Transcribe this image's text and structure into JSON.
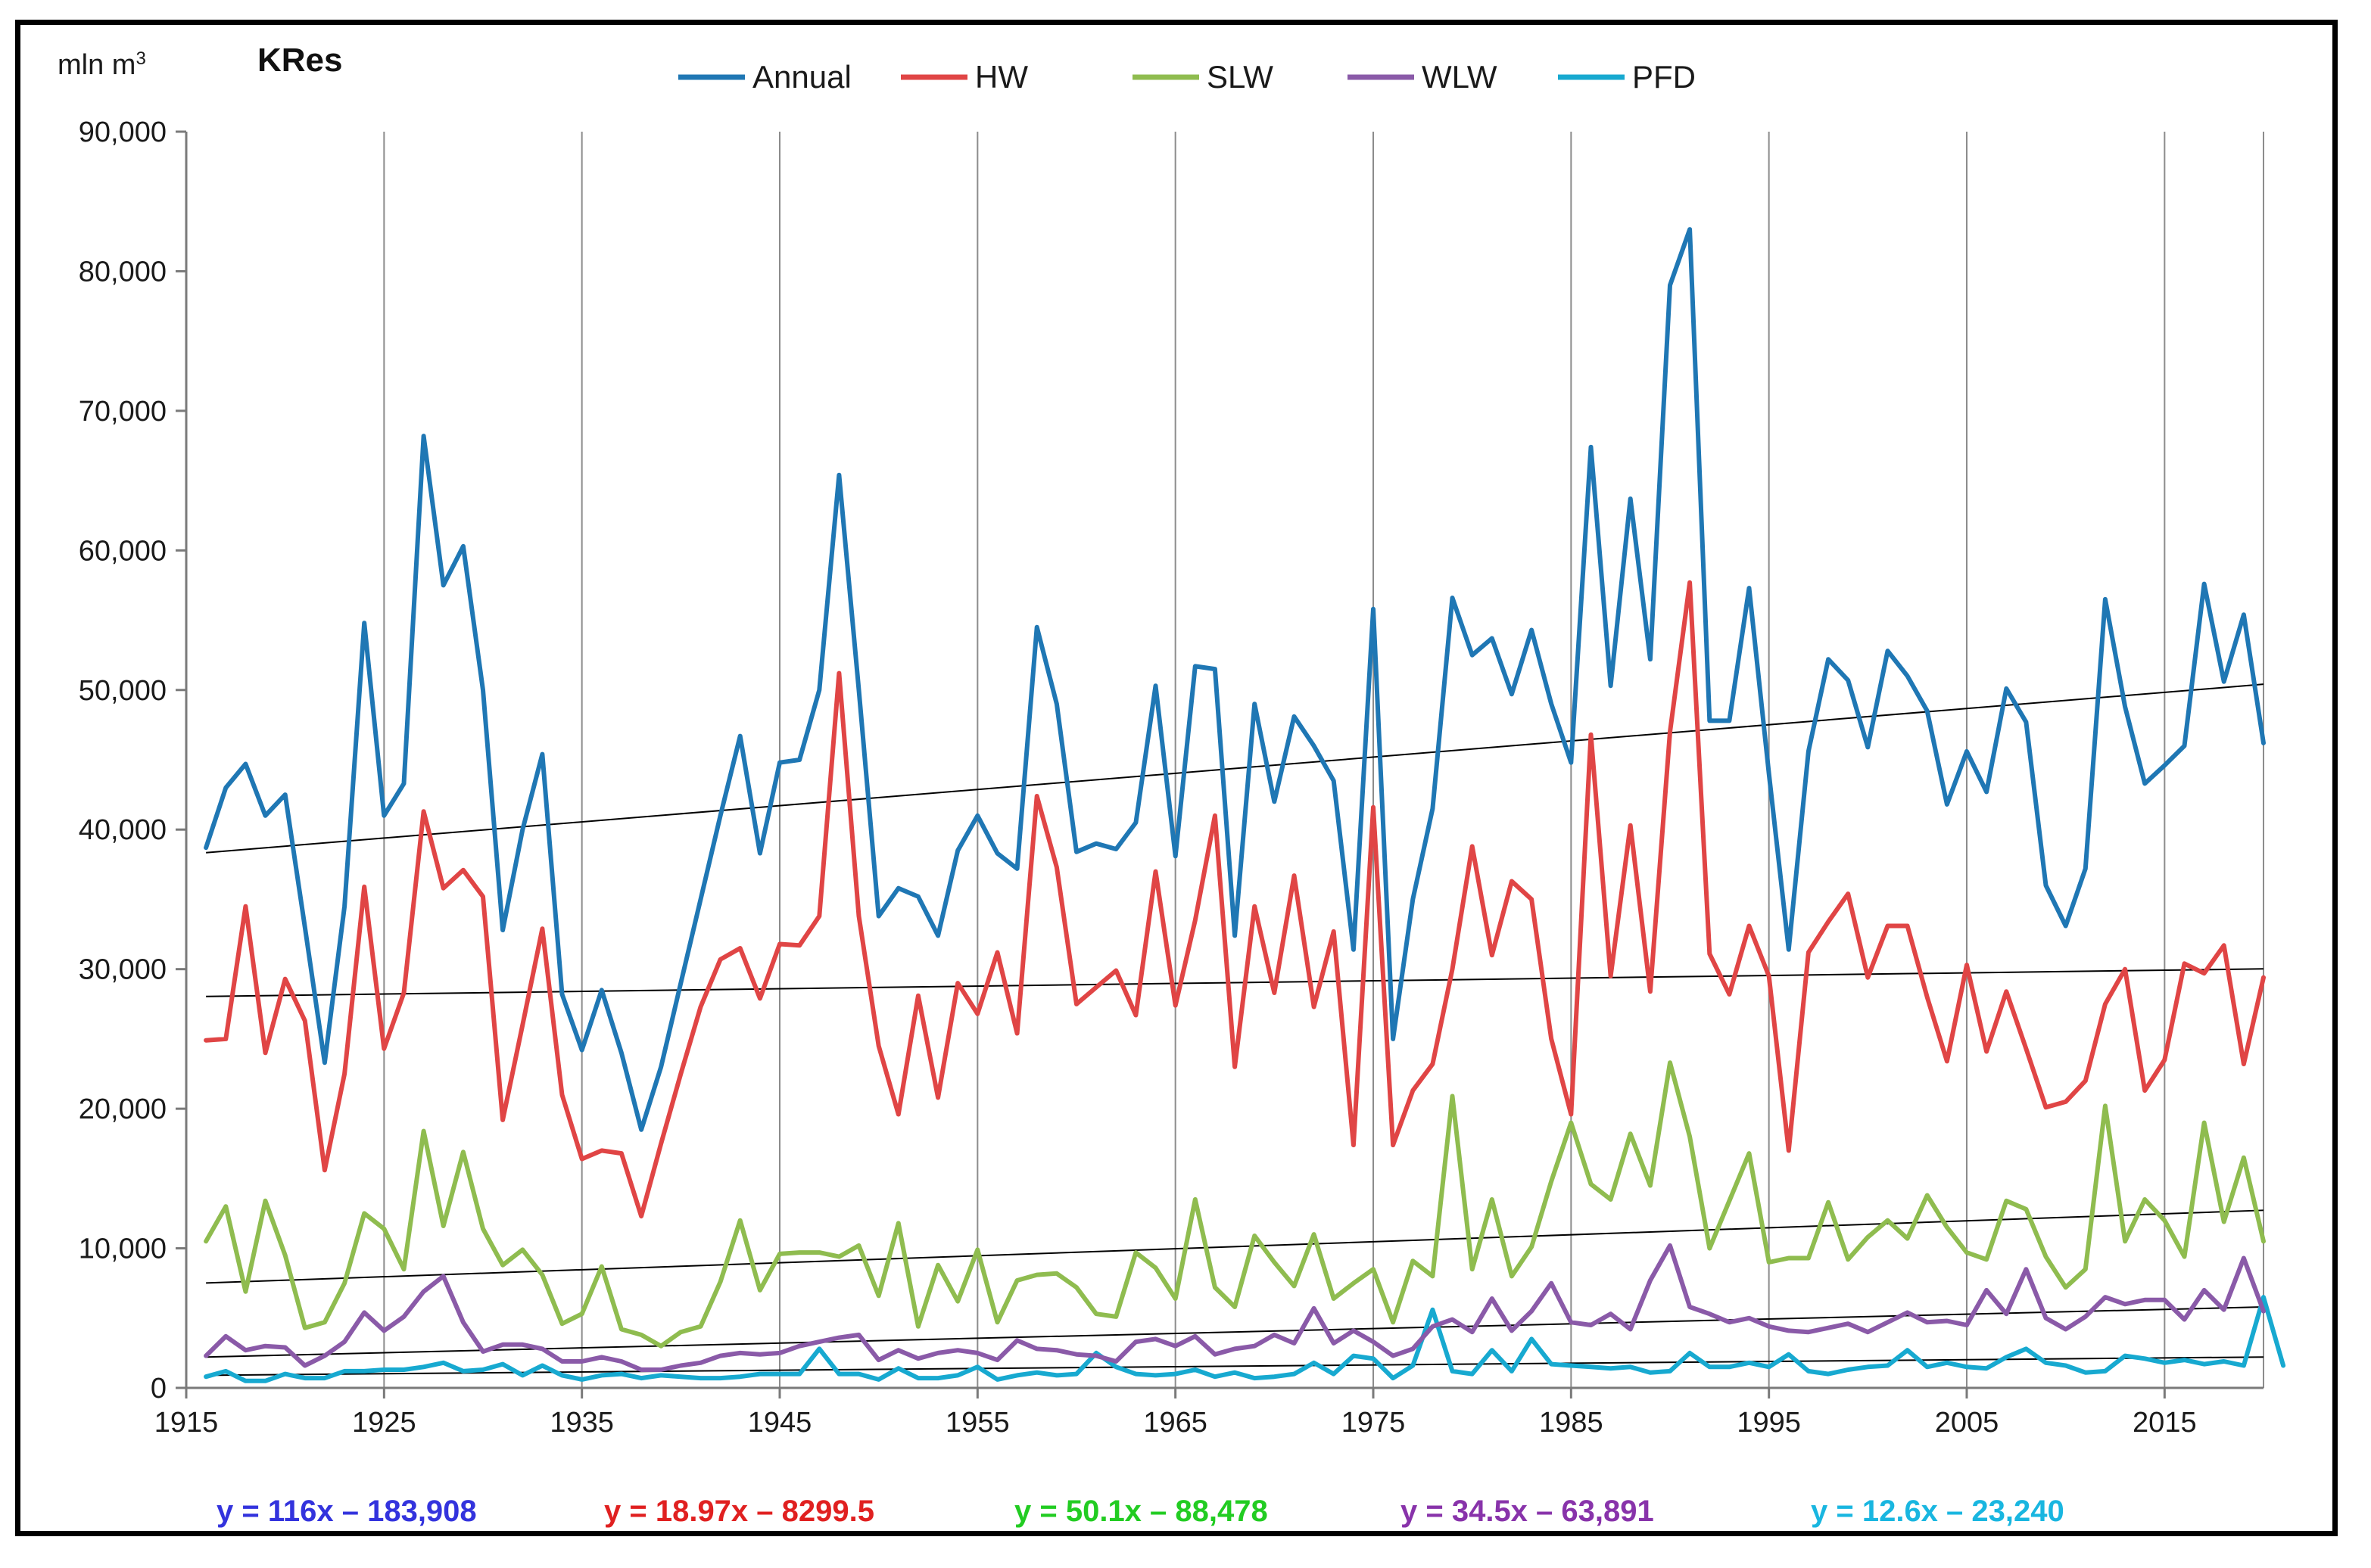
{
  "chart_data": {
    "type": "line",
    "title": "KRes",
    "ylabel": "mln m",
    "ylabel_sup": "3",
    "xlim": [
      1915,
      2020
    ],
    "ylim": [
      0,
      90000
    ],
    "x_ticks": [
      1915,
      1925,
      1935,
      1945,
      1955,
      1965,
      1975,
      1985,
      1995,
      2005,
      2015
    ],
    "y_ticks": [
      0,
      10000,
      20000,
      30000,
      40000,
      50000,
      60000,
      70000,
      80000,
      90000
    ],
    "y_tick_labels": [
      "0",
      "10,000",
      "20,000",
      "30,000",
      "40,000",
      "50,000",
      "60,000",
      "70,000",
      "80,000",
      "90,000"
    ],
    "grid": "vertical",
    "legend_position": "top-center",
    "x_start": 1916,
    "series": [
      {
        "name": "Annual",
        "color": "#1f77b4",
        "values": [
          38700,
          43000,
          44700,
          41000,
          42500,
          33000,
          23300,
          34500,
          54800,
          41000,
          43300,
          68200,
          57500,
          60300,
          50000,
          32800,
          40000,
          45400,
          28200,
          24200,
          28500,
          24000,
          18500,
          23000,
          29000,
          35000,
          41000,
          46700,
          38300,
          44800,
          45000,
          50000,
          65400,
          50000,
          33800,
          35800,
          35200,
          32400,
          38500,
          41000,
          38300,
          37200,
          54500,
          49000,
          38400,
          39000,
          38600,
          40500,
          50300,
          38100,
          51700,
          51500,
          32400,
          49000,
          42000,
          48100,
          46000,
          43500,
          31400,
          55800,
          25000,
          35000,
          41500,
          56600,
          52500,
          53700,
          49700,
          54300,
          49000,
          44800,
          67400,
          50300,
          63700,
          52200,
          79000,
          83000,
          47800,
          47800,
          57300,
          44000,
          31400,
          45600,
          52200,
          50700,
          45900,
          52800,
          51000,
          48500,
          41800,
          45600,
          42700,
          50100,
          47700,
          36000,
          33100,
          37200,
          56500,
          48800,
          43300,
          44600,
          46000,
          57600,
          50600,
          55400,
          46200
        ]
      },
      {
        "name": "HW",
        "color": "#e04545",
        "values": [
          24900,
          25000,
          34500,
          24000,
          29300,
          26300,
          15600,
          22500,
          35900,
          24300,
          28300,
          41300,
          35800,
          37100,
          35200,
          19200,
          26000,
          32900,
          21000,
          16400,
          17000,
          16800,
          12300,
          17500,
          22500,
          27300,
          30700,
          31500,
          27900,
          31800,
          31700,
          33800,
          51200,
          33800,
          24500,
          19600,
          28100,
          20800,
          29000,
          26800,
          31200,
          25400,
          42400,
          37300,
          27500,
          28700,
          29900,
          26700,
          37000,
          27400,
          33500,
          41000,
          23000,
          34500,
          28300,
          36700,
          27300,
          32700,
          17400,
          41600,
          17400,
          21300,
          23200,
          30000,
          38800,
          31000,
          36300,
          35000,
          25000,
          19600,
          46800,
          29500,
          40300,
          28400,
          47000,
          57700,
          31100,
          28200,
          33100,
          29500,
          17000,
          31200,
          33400,
          35400,
          29400,
          33100,
          33100,
          28000,
          23400,
          30300,
          24100,
          28400,
          24300,
          20100,
          20500,
          22000,
          27500,
          30000,
          21300,
          23500,
          30400,
          29700,
          31700,
          23200,
          29400
        ]
      },
      {
        "name": "SLW",
        "color": "#8fbc4f",
        "values": [
          10500,
          13000,
          6900,
          13400,
          9500,
          4300,
          4700,
          7500,
          12500,
          11400,
          8500,
          18400,
          11600,
          16900,
          11400,
          8800,
          9900,
          8100,
          4600,
          5300,
          8700,
          4200,
          3800,
          3000,
          4000,
          4400,
          7600,
          12000,
          7000,
          9600,
          9700,
          9700,
          9400,
          10200,
          6600,
          11800,
          4400,
          8800,
          6200,
          9900,
          4700,
          7700,
          8100,
          8200,
          7200,
          5300,
          5100,
          9700,
          8600,
          6400,
          13500,
          7200,
          5800,
          10900,
          9000,
          7300,
          11000,
          6400,
          7500,
          8500,
          4700,
          9100,
          8000,
          20900,
          8500,
          13500,
          8000,
          10100,
          14800,
          19000,
          14600,
          13500,
          18200,
          14500,
          23300,
          18000,
          10000,
          13400,
          16800,
          9000,
          9300,
          9300,
          13300,
          9200,
          10800,
          12000,
          10700,
          13800,
          11500,
          9700,
          9200,
          13400,
          12800,
          9400,
          7200,
          8500,
          20200,
          10500,
          13500,
          12000,
          9400,
          19000,
          11900,
          16500,
          10500
        ]
      },
      {
        "name": "WLW",
        "color": "#8a5aa8",
        "values": [
          2300,
          3700,
          2700,
          3000,
          2900,
          1600,
          2300,
          3300,
          5400,
          4100,
          5100,
          6900,
          8000,
          4700,
          2600,
          3100,
          3100,
          2800,
          1900,
          1900,
          2200,
          1900,
          1300,
          1300,
          1600,
          1800,
          2300,
          2500,
          2400,
          2500,
          3000,
          3300,
          3600,
          3800,
          2000,
          2700,
          2100,
          2500,
          2700,
          2500,
          2000,
          3400,
          2800,
          2700,
          2400,
          2300,
          1900,
          3300,
          3500,
          3000,
          3700,
          2400,
          2800,
          3000,
          3800,
          3200,
          5700,
          3200,
          4100,
          3300,
          2300,
          2800,
          4400,
          4900,
          4000,
          6400,
          4100,
          5500,
          7500,
          4700,
          4500,
          5300,
          4200,
          7700,
          10200,
          5800,
          5300,
          4700,
          5000,
          4400,
          4100,
          4000,
          4300,
          4600,
          4000,
          4700,
          5400,
          4700,
          4800,
          4500,
          7000,
          5300,
          8500,
          5000,
          4200,
          5100,
          6500,
          6000,
          6300,
          6300,
          4900,
          7000,
          5600,
          9300,
          5500
        ]
      },
      {
        "name": "PFD",
        "color": "#17a9d0",
        "values": [
          800,
          1200,
          500,
          500,
          1000,
          700,
          700,
          1200,
          1200,
          1300,
          1300,
          1500,
          1800,
          1200,
          1300,
          1700,
          900,
          1600,
          900,
          600,
          900,
          1000,
          700,
          900,
          800,
          700,
          700,
          800,
          1000,
          1000,
          1000,
          2800,
          1000,
          1000,
          600,
          1400,
          700,
          700,
          900,
          1500,
          600,
          900,
          1100,
          900,
          1000,
          2500,
          1500,
          1000,
          900,
          1000,
          1300,
          800,
          1100,
          700,
          800,
          1000,
          1800,
          1000,
          2300,
          2100,
          700,
          1600,
          5600,
          1200,
          1000,
          2700,
          1200,
          3500,
          1700,
          1600,
          1500,
          1400,
          1500,
          1100,
          1200,
          2500,
          1500,
          1500,
          1800,
          1500,
          2400,
          1200,
          1000,
          1300,
          1500,
          1600,
          2700,
          1500,
          1800,
          1500,
          1400,
          2200,
          2800,
          1800,
          1600,
          1100,
          1200,
          2300,
          2100,
          1800,
          2000,
          1700,
          1900,
          1600,
          6500,
          1600
        ]
      }
    ],
    "trendlines": [
      {
        "series": "Annual",
        "slope": 116,
        "intercept": -183908,
        "label": "y = 116x – 183,908",
        "color": "#3333dd"
      },
      {
        "series": "HW",
        "slope": 18.97,
        "intercept": -8299.5,
        "label": "y = 18.97x – 8299.5",
        "color": "#e02020"
      },
      {
        "series": "SLW",
        "slope": 50.1,
        "intercept": -88478,
        "label": "y = 50.1x – 88,478",
        "color": "#22cc22"
      },
      {
        "series": "WLW",
        "slope": 34.5,
        "intercept": -63891,
        "label": "y = 34.5x – 63,891",
        "color": "#8833aa"
      },
      {
        "series": "PFD",
        "slope": 12.6,
        "intercept": -23240,
        "label": "y = 12.6x – 23,240",
        "color": "#19b6e0"
      }
    ]
  }
}
